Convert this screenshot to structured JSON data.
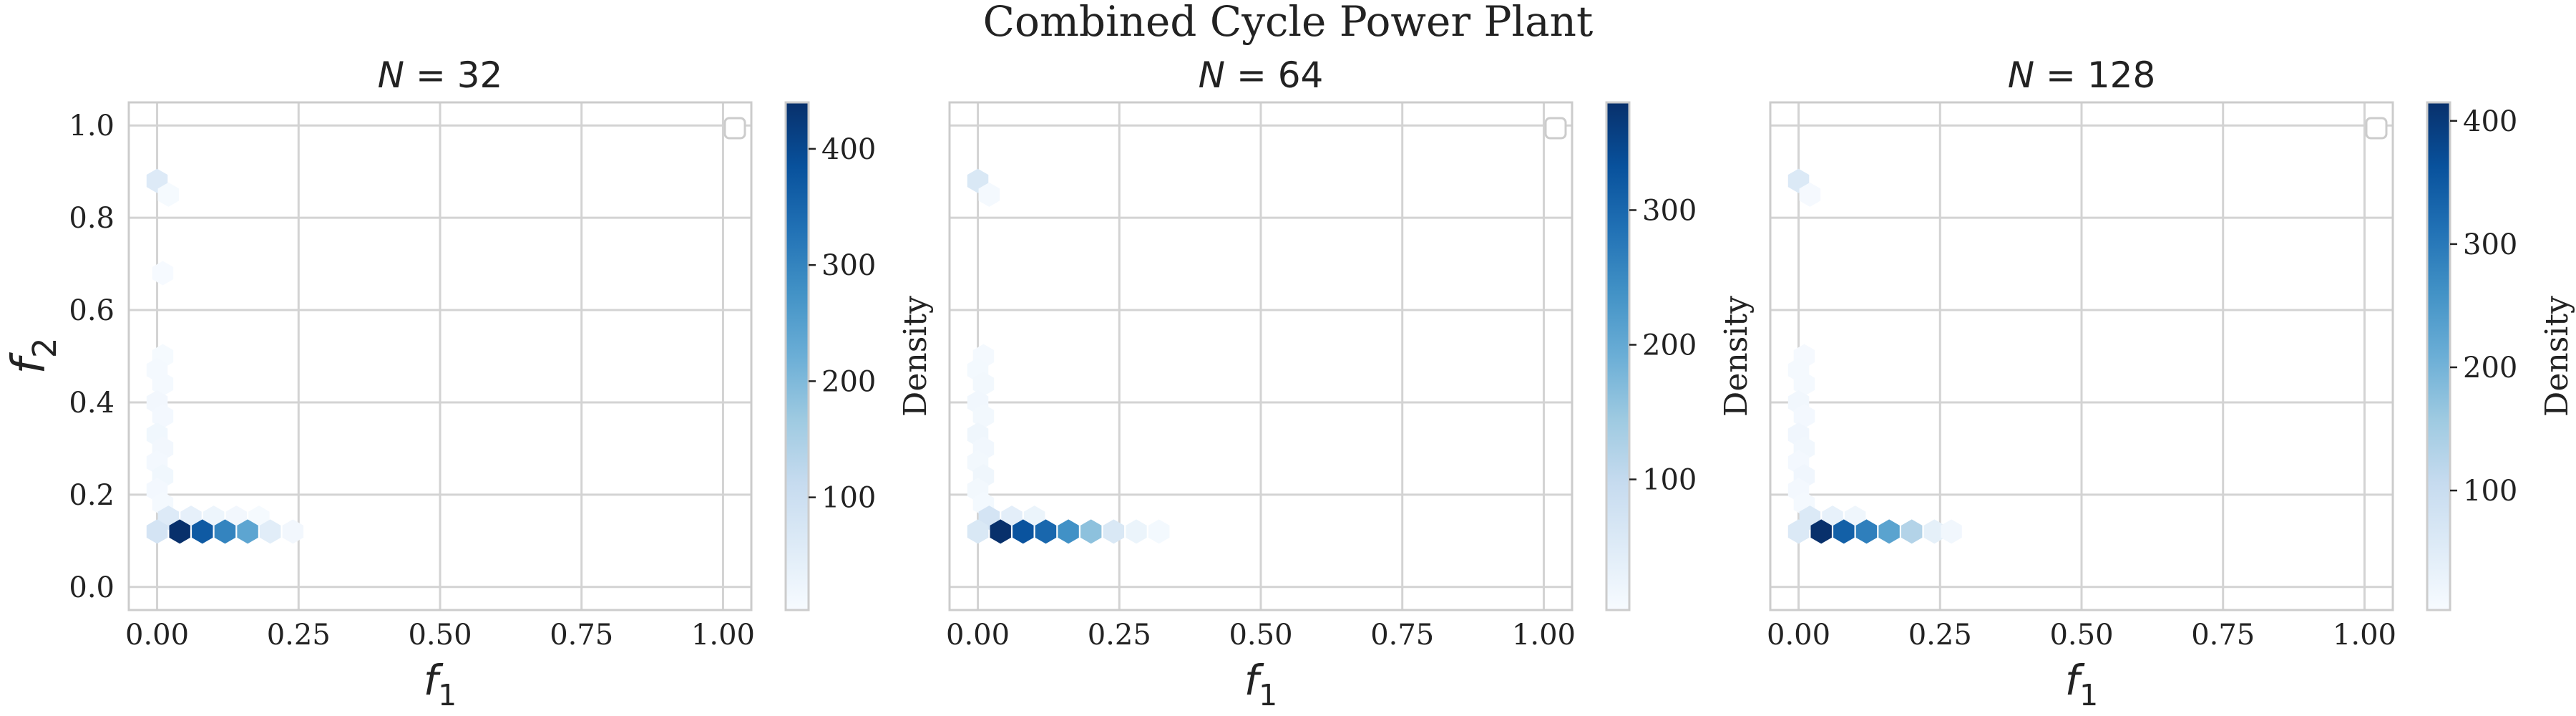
{
  "figure": {
    "suptitle": "Combined Cycle Power Plant"
  },
  "colormap": [
    "#f7fbff",
    "#deebf7",
    "#c6dbef",
    "#9ecae1",
    "#6baed6",
    "#4292c6",
    "#2171b5",
    "#08519c",
    "#08306b"
  ],
  "chart_data": [
    {
      "type": "heatmap",
      "subtype": "hexbin",
      "title": "N = 32",
      "xlabel": "f1",
      "ylabel": "f2",
      "xlim": [
        -0.05,
        1.05
      ],
      "ylim": [
        -0.05,
        1.05
      ],
      "xticks": [
        0.0,
        0.25,
        0.5,
        0.75,
        1.0
      ],
      "xtick_labels": [
        "0.00",
        "0.25",
        "0.50",
        "0.75",
        "1.00"
      ],
      "yticks": [
        0.0,
        0.2,
        0.4,
        0.6,
        0.8,
        1.0
      ],
      "ytick_labels": [
        "0.0",
        "0.2",
        "0.4",
        "0.6",
        "0.8",
        "1.0"
      ],
      "grid": true,
      "legend": "top-right (empty)",
      "colorbar": {
        "label": "Density",
        "ticks": [
          100,
          200,
          300,
          400
        ],
        "tick_labels": [
          "100",
          "200",
          "300",
          "400"
        ],
        "vmin": 3,
        "vmax": 440
      },
      "bins": [
        {
          "x": 0.0,
          "y": 0.88,
          "v": 60
        },
        {
          "x": 0.02,
          "y": 0.85,
          "v": 8
        },
        {
          "x": 0.01,
          "y": 0.68,
          "v": 6
        },
        {
          "x": 0.01,
          "y": 0.5,
          "v": 8
        },
        {
          "x": 0.0,
          "y": 0.47,
          "v": 10
        },
        {
          "x": 0.01,
          "y": 0.44,
          "v": 10
        },
        {
          "x": 0.0,
          "y": 0.4,
          "v": 15
        },
        {
          "x": 0.01,
          "y": 0.37,
          "v": 12
        },
        {
          "x": 0.0,
          "y": 0.33,
          "v": 18
        },
        {
          "x": 0.01,
          "y": 0.3,
          "v": 15
        },
        {
          "x": 0.0,
          "y": 0.27,
          "v": 12
        },
        {
          "x": 0.01,
          "y": 0.24,
          "v": 18
        },
        {
          "x": 0.0,
          "y": 0.21,
          "v": 12
        },
        {
          "x": 0.01,
          "y": 0.18,
          "v": 10
        },
        {
          "x": 0.02,
          "y": 0.15,
          "v": 60
        },
        {
          "x": 0.06,
          "y": 0.15,
          "v": 40
        },
        {
          "x": 0.1,
          "y": 0.15,
          "v": 25
        },
        {
          "x": 0.14,
          "y": 0.15,
          "v": 15
        },
        {
          "x": 0.18,
          "y": 0.15,
          "v": 8
        },
        {
          "x": 0.0,
          "y": 0.12,
          "v": 80
        },
        {
          "x": 0.04,
          "y": 0.12,
          "v": 440
        },
        {
          "x": 0.08,
          "y": 0.12,
          "v": 370
        },
        {
          "x": 0.12,
          "y": 0.12,
          "v": 300
        },
        {
          "x": 0.16,
          "y": 0.12,
          "v": 240
        },
        {
          "x": 0.2,
          "y": 0.12,
          "v": 50
        },
        {
          "x": 0.24,
          "y": 0.12,
          "v": 15
        }
      ]
    },
    {
      "type": "heatmap",
      "subtype": "hexbin",
      "title": "N = 64",
      "xlabel": "f1",
      "ylabel": "",
      "xlim": [
        -0.05,
        1.05
      ],
      "ylim": [
        -0.05,
        1.05
      ],
      "xticks": [
        0.0,
        0.25,
        0.5,
        0.75,
        1.0
      ],
      "xtick_labels": [
        "0.00",
        "0.25",
        "0.50",
        "0.75",
        "1.00"
      ],
      "grid": true,
      "legend": "top-right (empty)",
      "colorbar": {
        "label": "Density",
        "ticks": [
          100,
          200,
          300
        ],
        "tick_labels": [
          "100",
          "200",
          "300"
        ],
        "vmin": 3,
        "vmax": 380
      },
      "bins": [
        {
          "x": 0.0,
          "y": 0.88,
          "v": 60
        },
        {
          "x": 0.02,
          "y": 0.85,
          "v": 8
        },
        {
          "x": 0.01,
          "y": 0.5,
          "v": 8
        },
        {
          "x": 0.0,
          "y": 0.47,
          "v": 10
        },
        {
          "x": 0.01,
          "y": 0.44,
          "v": 12
        },
        {
          "x": 0.0,
          "y": 0.4,
          "v": 15
        },
        {
          "x": 0.01,
          "y": 0.37,
          "v": 12
        },
        {
          "x": 0.0,
          "y": 0.33,
          "v": 18
        },
        {
          "x": 0.01,
          "y": 0.3,
          "v": 15
        },
        {
          "x": 0.0,
          "y": 0.27,
          "v": 12
        },
        {
          "x": 0.01,
          "y": 0.24,
          "v": 18
        },
        {
          "x": 0.0,
          "y": 0.21,
          "v": 12
        },
        {
          "x": 0.01,
          "y": 0.18,
          "v": 10
        },
        {
          "x": 0.02,
          "y": 0.15,
          "v": 70
        },
        {
          "x": 0.06,
          "y": 0.15,
          "v": 40
        },
        {
          "x": 0.1,
          "y": 0.15,
          "v": 25
        },
        {
          "x": 0.0,
          "y": 0.12,
          "v": 60
        },
        {
          "x": 0.04,
          "y": 0.12,
          "v": 380
        },
        {
          "x": 0.08,
          "y": 0.12,
          "v": 330
        },
        {
          "x": 0.12,
          "y": 0.12,
          "v": 300
        },
        {
          "x": 0.16,
          "y": 0.12,
          "v": 240
        },
        {
          "x": 0.2,
          "y": 0.12,
          "v": 160
        },
        {
          "x": 0.24,
          "y": 0.12,
          "v": 60
        },
        {
          "x": 0.28,
          "y": 0.12,
          "v": 25
        },
        {
          "x": 0.32,
          "y": 0.12,
          "v": 10
        }
      ]
    },
    {
      "type": "heatmap",
      "subtype": "hexbin",
      "title": "N = 128",
      "xlabel": "f1",
      "ylabel": "",
      "xlim": [
        -0.05,
        1.05
      ],
      "ylim": [
        -0.05,
        1.05
      ],
      "xticks": [
        0.0,
        0.25,
        0.5,
        0.75,
        1.0
      ],
      "xtick_labels": [
        "0.00",
        "0.25",
        "0.50",
        "0.75",
        "1.00"
      ],
      "grid": true,
      "legend": "top-right (empty)",
      "colorbar": {
        "label": "Density",
        "ticks": [
          100,
          200,
          300,
          400
        ],
        "tick_labels": [
          "100",
          "200",
          "300",
          "400"
        ],
        "vmin": 3,
        "vmax": 415
      },
      "bins": [
        {
          "x": 0.0,
          "y": 0.88,
          "v": 60
        },
        {
          "x": 0.02,
          "y": 0.85,
          "v": 8
        },
        {
          "x": 0.01,
          "y": 0.5,
          "v": 8
        },
        {
          "x": 0.0,
          "y": 0.47,
          "v": 10
        },
        {
          "x": 0.01,
          "y": 0.44,
          "v": 10
        },
        {
          "x": 0.0,
          "y": 0.4,
          "v": 15
        },
        {
          "x": 0.01,
          "y": 0.37,
          "v": 12
        },
        {
          "x": 0.0,
          "y": 0.33,
          "v": 18
        },
        {
          "x": 0.01,
          "y": 0.3,
          "v": 15
        },
        {
          "x": 0.0,
          "y": 0.27,
          "v": 12
        },
        {
          "x": 0.01,
          "y": 0.24,
          "v": 18
        },
        {
          "x": 0.0,
          "y": 0.21,
          "v": 12
        },
        {
          "x": 0.01,
          "y": 0.18,
          "v": 10
        },
        {
          "x": 0.02,
          "y": 0.15,
          "v": 60
        },
        {
          "x": 0.06,
          "y": 0.15,
          "v": 35
        },
        {
          "x": 0.1,
          "y": 0.15,
          "v": 20
        },
        {
          "x": 0.0,
          "y": 0.12,
          "v": 60
        },
        {
          "x": 0.04,
          "y": 0.12,
          "v": 415
        },
        {
          "x": 0.08,
          "y": 0.12,
          "v": 340
        },
        {
          "x": 0.12,
          "y": 0.12,
          "v": 290
        },
        {
          "x": 0.16,
          "y": 0.12,
          "v": 230
        },
        {
          "x": 0.2,
          "y": 0.12,
          "v": 130
        },
        {
          "x": 0.24,
          "y": 0.12,
          "v": 40
        },
        {
          "x": 0.27,
          "y": 0.12,
          "v": 15
        }
      ]
    }
  ]
}
